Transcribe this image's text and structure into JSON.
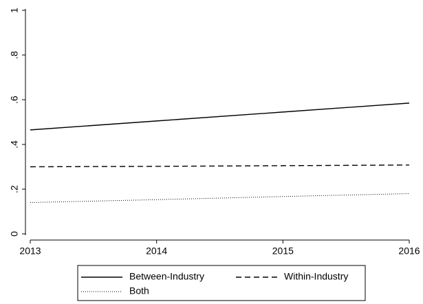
{
  "chart_data": {
    "type": "line",
    "x": [
      2013,
      2014,
      2015,
      2016
    ],
    "xlim": [
      2013,
      2016
    ],
    "xticks": [
      2013,
      2014,
      2015,
      2016
    ],
    "ylim": [
      0,
      1
    ],
    "yticks": [
      0,
      {
        "value": 0.2,
        "label": ".2"
      },
      {
        "value": 0.4,
        "label": ".4"
      },
      {
        "value": 0.6,
        "label": ".6"
      },
      {
        "value": 0.8,
        "label": ".8"
      },
      1
    ],
    "legend": "bottom",
    "series": [
      {
        "name": "Between-Industry",
        "color": "#000000",
        "style": "solid",
        "values": [
          0.465,
          0.505,
          0.545,
          0.585
        ]
      },
      {
        "name": "Within-Industry",
        "color": "#000000",
        "style": "dash",
        "values": [
          0.3,
          0.302,
          0.305,
          0.308
        ]
      },
      {
        "name": "Both",
        "color": "#000000",
        "style": "dot",
        "values": [
          0.14,
          0.153,
          0.167,
          0.18
        ]
      }
    ]
  }
}
